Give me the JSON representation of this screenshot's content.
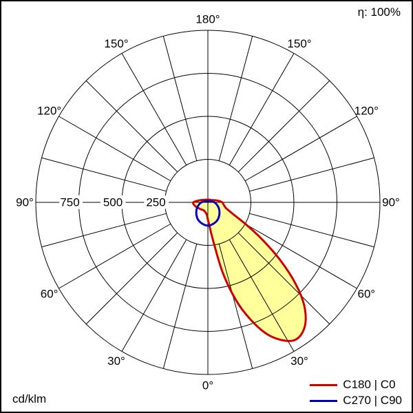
{
  "header": {
    "efficiency_label": "η: 100%"
  },
  "footer": {
    "unit_label": "cd/klm"
  },
  "legend": {
    "items": [
      {
        "label": "C180 | C0",
        "color": "#cc0000"
      },
      {
        "label": "C270 | C90",
        "color": "#0000bb"
      }
    ]
  },
  "chart_data": {
    "type": "polar",
    "description": "Photometric luminous intensity distribution polar curve",
    "unit": "cd/klm",
    "efficiency_percent": 100,
    "rmax": 1000,
    "rings": [
      250,
      500,
      750,
      1000
    ],
    "ring_tick_labels": [
      {
        "value": 250,
        "label": "250"
      },
      {
        "value": 500,
        "label": "500"
      },
      {
        "value": 750,
        "label": "750"
      }
    ],
    "angle_step_deg": 15,
    "zero_direction": "down",
    "angle_labels": [
      {
        "deg": 0,
        "label": "0°"
      },
      {
        "deg": 30,
        "label": "30°"
      },
      {
        "deg": -30,
        "label": "30°"
      },
      {
        "deg": 60,
        "label": "60°"
      },
      {
        "deg": -60,
        "label": "60°"
      },
      {
        "deg": 90,
        "label": "90°"
      },
      {
        "deg": -90,
        "label": "90°"
      },
      {
        "deg": 120,
        "label": "120°"
      },
      {
        "deg": -120,
        "label": "120°"
      },
      {
        "deg": 150,
        "label": "150°"
      },
      {
        "deg": -150,
        "label": "150°"
      },
      {
        "deg": 180,
        "label": "180°"
      }
    ],
    "series": [
      {
        "name": "C180 | C0",
        "color": "#cc0000",
        "fill": "#ffff9c",
        "closed": true,
        "points": [
          [
            -180,
            15
          ],
          [
            -165,
            16
          ],
          [
            -150,
            18
          ],
          [
            -135,
            22
          ],
          [
            -120,
            28
          ],
          [
            -105,
            48
          ],
          [
            -90,
            85
          ],
          [
            -75,
            78
          ],
          [
            -60,
            65
          ],
          [
            -45,
            57
          ],
          [
            -30,
            52
          ],
          [
            -15,
            58
          ],
          [
            -5,
            72
          ],
          [
            0,
            100
          ],
          [
            4,
            140
          ],
          [
            8,
            230
          ],
          [
            12,
            420
          ],
          [
            16,
            590
          ],
          [
            20,
            725
          ],
          [
            24,
            835
          ],
          [
            28,
            905
          ],
          [
            32,
            945
          ],
          [
            36,
            935
          ],
          [
            40,
            885
          ],
          [
            44,
            795
          ],
          [
            48,
            665
          ],
          [
            52,
            515
          ],
          [
            56,
            370
          ],
          [
            60,
            255
          ],
          [
            64,
            175
          ],
          [
            68,
            135
          ],
          [
            72,
            112
          ],
          [
            78,
            98
          ],
          [
            84,
            90
          ],
          [
            90,
            84
          ],
          [
            100,
            58
          ],
          [
            110,
            38
          ],
          [
            120,
            26
          ],
          [
            135,
            20
          ],
          [
            150,
            18
          ],
          [
            165,
            16
          ]
        ]
      },
      {
        "name": "C270 | C90",
        "color": "#0000bb",
        "fill": "none",
        "closed": true,
        "points": [
          [
            -180,
            8
          ],
          [
            -150,
            9
          ],
          [
            -120,
            12
          ],
          [
            -105,
            22
          ],
          [
            -90,
            38
          ],
          [
            -75,
            55
          ],
          [
            -60,
            75
          ],
          [
            -45,
            95
          ],
          [
            -30,
            115
          ],
          [
            -15,
            128
          ],
          [
            0,
            135
          ],
          [
            15,
            128
          ],
          [
            30,
            115
          ],
          [
            45,
            95
          ],
          [
            60,
            75
          ],
          [
            75,
            55
          ],
          [
            90,
            38
          ],
          [
            105,
            22
          ],
          [
            120,
            12
          ],
          [
            150,
            9
          ],
          [
            165,
            8
          ]
        ]
      }
    ]
  }
}
